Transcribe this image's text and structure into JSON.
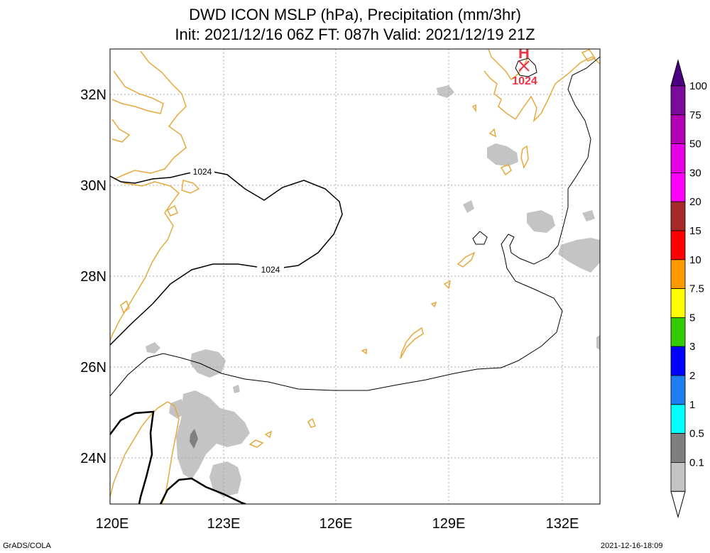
{
  "title_line1": "DWD ICON MSLP (hPa), Precipitation (mm/3hr)",
  "title_line2": "Init: 2021/12/16 06Z  FT: 087h  Valid: 2021/12/19 21Z",
  "lat_labels": [
    "32N",
    "30N",
    "28N",
    "26N",
    "24N"
  ],
  "lon_labels": [
    "120E",
    "123E",
    "126E",
    "129E",
    "132E"
  ],
  "isobar_labels": [
    "1024",
    "1024"
  ],
  "high_marker": {
    "symbol": "H",
    "value": "1024",
    "color": "#ee3344"
  },
  "colorbar": {
    "labels": [
      "100",
      "75",
      "50",
      "30",
      "20",
      "15",
      "10",
      "7.5",
      "5",
      "3",
      "2",
      "1",
      "0.5",
      "0.1"
    ],
    "colors": [
      "#7a0c9c",
      "#b300b3",
      "#e600e6",
      "#ff00ff",
      "#a52a2a",
      "#ff0000",
      "#ff9900",
      "#ffff00",
      "#33cc00",
      "#0000ff",
      "#1e7ef0",
      "#00ffff",
      "#7f7f7f",
      "#c4c4c4"
    ],
    "top_triangle_color": "#4b0082"
  },
  "colors": {
    "coastline": "#e6a93c",
    "isobar": "#000000",
    "precip_light": "#c4c4c4",
    "precip_mid": "#808080",
    "grid": "#aaaaaa"
  },
  "footer_left": "GrADS/COLA",
  "footer_right": "2021-12-16-18:09"
}
